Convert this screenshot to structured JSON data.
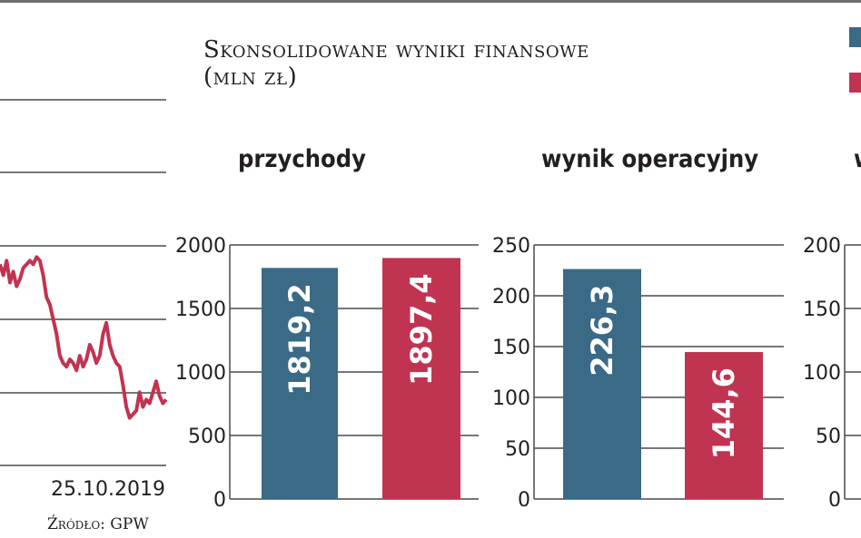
{
  "heading": {
    "line1": "Skonsolidowane wyniki finansowe",
    "line2": "(mln zł)"
  },
  "colors": {
    "series_a": "#3a6a86",
    "series_b": "#c13451",
    "grid": "#4a4a4a",
    "text": "#231f20"
  },
  "source": "Źródło: GPW",
  "chart_data": [
    {
      "type": "line",
      "title": "",
      "x_label_end": "25.10.2019",
      "y_gridlines": 6,
      "series": [
        {
          "color": "#c13451",
          "x": [
            0,
            2,
            4,
            6,
            8,
            10,
            12,
            14,
            16,
            18,
            20,
            22,
            24,
            26,
            28,
            30,
            32,
            34,
            36,
            38,
            40,
            42,
            44,
            46,
            48,
            50,
            52,
            54,
            56,
            58,
            60,
            62,
            64,
            66,
            68,
            70,
            72,
            74,
            76,
            78,
            80,
            82,
            84,
            86,
            88,
            90,
            92,
            94,
            96,
            98,
            100
          ],
          "y": [
            55,
            52,
            56,
            50,
            53,
            49,
            51,
            54,
            55,
            56,
            55,
            57,
            56,
            52,
            46,
            44,
            40,
            36,
            30,
            28,
            27,
            29,
            28,
            26,
            30,
            27,
            29,
            33,
            31,
            28,
            30,
            36,
            39,
            33,
            30,
            28,
            27,
            22,
            16,
            13,
            14,
            15,
            20,
            16,
            18,
            17,
            20,
            23,
            19,
            17,
            18
          ]
        }
      ]
    },
    {
      "type": "bar",
      "title": "przychody",
      "ylim": [
        0,
        2000
      ],
      "yticks": [
        "0",
        "500",
        "1000",
        "1500",
        "2000"
      ],
      "values": [
        1819.2,
        1897.4
      ],
      "labels": [
        "1819,2",
        "1897,4"
      ]
    },
    {
      "type": "bar",
      "title": "wynik operacyjny",
      "ylim": [
        0,
        250
      ],
      "yticks": [
        "0",
        "50",
        "100",
        "150",
        "200",
        "250"
      ],
      "values": [
        226.3,
        144.6
      ],
      "labels": [
        "226,3",
        "144,6"
      ]
    },
    {
      "type": "bar",
      "title": "w",
      "ylim": [
        0,
        200
      ],
      "yticks": [
        "0",
        "50",
        "100",
        "150",
        "200"
      ],
      "values": [],
      "labels": []
    }
  ]
}
